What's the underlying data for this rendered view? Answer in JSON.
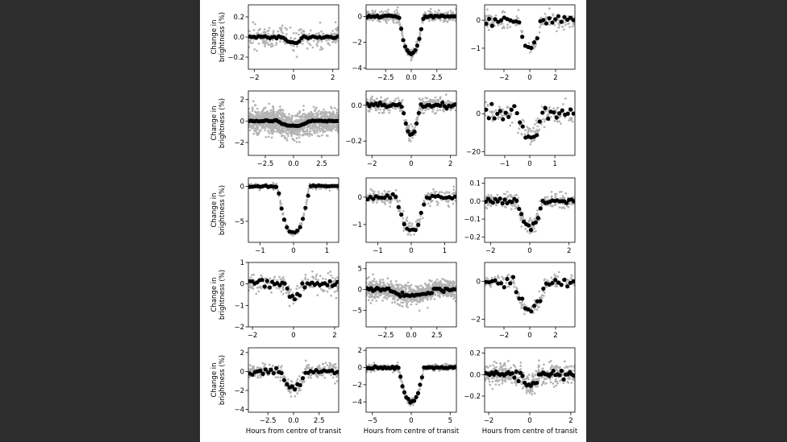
{
  "colors": {
    "background": "#2d2d2d",
    "figure": "#ffffff",
    "raw_points": "#b3b3b3",
    "binned_points": "#000000"
  },
  "chart_data": [
    {
      "type": "scatter",
      "title": "",
      "ylabel": "Change in brightness (%)",
      "xlabel": "",
      "xlim": [
        -2.3,
        2.3
      ],
      "ylim": [
        -0.32,
        0.32
      ],
      "xticks": [
        -2,
        0,
        2
      ],
      "xtick_labels": [
        "−2",
        "0",
        "2"
      ],
      "yticks": [
        -0.2,
        0,
        0.2
      ],
      "ytick_labels": [
        "−0.2",
        "0.0",
        "0.2"
      ],
      "depth": 0.06,
      "duration": 1.0,
      "raw_noise": 0.1,
      "raw_count": 220,
      "binned_count": 40,
      "binned_noise": 0.008
    },
    {
      "type": "scatter",
      "title": "",
      "ylabel": "",
      "xlabel": "",
      "xlim": [
        -4.4,
        4.4
      ],
      "ylim": [
        -4.1,
        0.9
      ],
      "xticks": [
        -2.5,
        0,
        2.5
      ],
      "xtick_labels": [
        "−2.5",
        "0.0",
        "2.5"
      ],
      "yticks": [
        -4,
        -2,
        0
      ],
      "ytick_labels": [
        "−4",
        "−2",
        "0"
      ],
      "depth": 2.9,
      "duration": 2.4,
      "raw_noise": 0.35,
      "raw_count": 420,
      "binned_count": 45,
      "binned_noise": 0.05
    },
    {
      "type": "scatter",
      "title": "",
      "ylabel": "",
      "xlabel": "",
      "xlim": [
        -3.5,
        3.5
      ],
      "ylim": [
        -1.75,
        0.55
      ],
      "xticks": [
        -2,
        0,
        2
      ],
      "xtick_labels": [
        "−2",
        "0",
        "2"
      ],
      "yticks": [
        -1,
        0
      ],
      "ytick_labels": [
        "−1",
        "0"
      ],
      "depth": 1.0,
      "duration": 1.7,
      "raw_noise": 0.28,
      "raw_count": 170,
      "binned_count": 30,
      "binned_noise": 0.08
    },
    {
      "type": "scatter",
      "title": "",
      "ylabel": "Change in brightness (%)",
      "xlabel": "",
      "xlim": [
        -4.0,
        4.0
      ],
      "ylim": [
        -3.2,
        2.8
      ],
      "xticks": [
        -2.5,
        0,
        2.5
      ],
      "xtick_labels": [
        "−2.5",
        "0.0",
        "2.5"
      ],
      "yticks": [
        -2,
        0,
        2
      ],
      "ytick_labels": [
        "−2",
        "0",
        "2"
      ],
      "depth": 0.45,
      "duration": 2.8,
      "raw_noise": 1.0,
      "raw_count": 1300,
      "binned_count": 50,
      "binned_noise": 0.03
    },
    {
      "type": "scatter",
      "title": "",
      "ylabel": "",
      "xlabel": "",
      "xlim": [
        -2.3,
        2.3
      ],
      "ylim": [
        -0.28,
        0.08
      ],
      "xticks": [
        -2,
        0,
        2
      ],
      "xtick_labels": [
        "−2",
        "0",
        "2"
      ],
      "yticks": [
        -0.2,
        0
      ],
      "ytick_labels": [
        "−0.2",
        "0.0"
      ],
      "depth": 0.16,
      "duration": 0.9,
      "raw_noise": 0.035,
      "raw_count": 360,
      "binned_count": 42,
      "binned_noise": 0.006
    },
    {
      "type": "scatter",
      "title": "",
      "ylabel": "",
      "xlabel": "",
      "xlim": [
        -1.8,
        1.8
      ],
      "ylim": [
        -22,
        12
      ],
      "xticks": [
        -1,
        0,
        1
      ],
      "xtick_labels": [
        "−1",
        "0",
        "1"
      ],
      "yticks": [
        -20,
        0
      ],
      "ytick_labels": [
        "−20",
        "0"
      ],
      "depth": 11,
      "duration": 1.1,
      "raw_noise": 5,
      "raw_count": 170,
      "binned_count": 32,
      "binned_noise": 2.0
    },
    {
      "type": "scatter",
      "title": "",
      "ylabel": "Change in brightness (%)",
      "xlabel": "",
      "xlim": [
        -1.35,
        1.35
      ],
      "ylim": [
        -8.0,
        1.2
      ],
      "xticks": [
        -1,
        0,
        1
      ],
      "xtick_labels": [
        "−1",
        "0",
        "1"
      ],
      "yticks": [
        -5,
        0
      ],
      "ytick_labels": [
        "−5",
        "0"
      ],
      "depth": 6.7,
      "duration": 0.95,
      "raw_noise": 0.4,
      "raw_count": 220,
      "binned_count": 34,
      "binned_noise": 0.1
    },
    {
      "type": "scatter",
      "title": "",
      "ylabel": "",
      "xlabel": "",
      "xlim": [
        -1.35,
        1.35
      ],
      "ylim": [
        -1.65,
        0.7
      ],
      "xticks": [
        -1,
        0,
        1
      ],
      "xtick_labels": [
        "−1",
        "0",
        "1"
      ],
      "yticks": [
        -1,
        0
      ],
      "ytick_labels": [
        "−1",
        "0"
      ],
      "depth": 1.2,
      "duration": 0.85,
      "raw_noise": 0.25,
      "raw_count": 220,
      "binned_count": 32,
      "binned_noise": 0.05
    },
    {
      "type": "scatter",
      "title": "",
      "ylabel": "",
      "xlabel": "",
      "xlim": [
        -2.3,
        2.3
      ],
      "ylim": [
        -0.23,
        0.13
      ],
      "xticks": [
        -2,
        0,
        2
      ],
      "xtick_labels": [
        "−2",
        "0",
        "2"
      ],
      "yticks": [
        -0.2,
        -0.1,
        0,
        0.1
      ],
      "ytick_labels": [
        "−0.2",
        "−0.1",
        "0.0",
        "0.1"
      ],
      "depth": 0.14,
      "duration": 1.3,
      "raw_noise": 0.04,
      "raw_count": 260,
      "binned_count": 38,
      "binned_noise": 0.008
    },
    {
      "type": "scatter",
      "title": "",
      "ylabel": "Change in brightness (%)",
      "xlabel": "",
      "xlim": [
        -2.2,
        2.2
      ],
      "ylim": [
        -2.0,
        1.0
      ],
      "xticks": [
        -2,
        0,
        2
      ],
      "xtick_labels": [
        "−2",
        "0",
        "2"
      ],
      "yticks": [
        -2,
        -1,
        0,
        1
      ],
      "ytick_labels": [
        "−2",
        "−1",
        "0",
        "1"
      ],
      "depth": 0.6,
      "duration": 0.9,
      "raw_noise": 0.4,
      "raw_count": 200,
      "binned_count": 36,
      "binned_noise": 0.1
    },
    {
      "type": "scatter",
      "title": "",
      "ylabel": "",
      "xlabel": "",
      "xlim": [
        -4.4,
        4.4
      ],
      "ylim": [
        -9,
        6.5
      ],
      "xticks": [
        -2.5,
        0,
        2.5
      ],
      "xtick_labels": [
        "−2.5",
        "0.0",
        "2.5"
      ],
      "yticks": [
        -5,
        0,
        5
      ],
      "ytick_labels": [
        "−5",
        "0",
        "5"
      ],
      "depth": 1.5,
      "duration": 4.5,
      "raw_noise": 2.0,
      "raw_count": 900,
      "binned_count": 46,
      "binned_noise": 0.2
    },
    {
      "type": "scatter",
      "title": "",
      "ylabel": "",
      "xlabel": "",
      "xlim": [
        -3.5,
        3.5
      ],
      "ylim": [
        -2.4,
        1.0
      ],
      "xticks": [
        -2,
        0,
        2
      ],
      "xtick_labels": [
        "−2",
        "0",
        "2"
      ],
      "yticks": [
        -2,
        0
      ],
      "ytick_labels": [
        "−2",
        "0"
      ],
      "depth": 1.5,
      "duration": 2.5,
      "raw_noise": 0.35,
      "raw_count": 170,
      "binned_count": 30,
      "binned_noise": 0.12
    },
    {
      "type": "scatter",
      "title": "",
      "ylabel": "Change in brightness (%)",
      "xlabel": "Hours from centre of transit",
      "xlim": [
        -4.4,
        4.4
      ],
      "ylim": [
        -4.3,
        2.5
      ],
      "xticks": [
        -2.5,
        0,
        2.5
      ],
      "xtick_labels": [
        "−2.5",
        "0.0",
        "2.5"
      ],
      "yticks": [
        -4,
        -2,
        0,
        2
      ],
      "ytick_labels": [
        "−4",
        "−2",
        "0",
        "2"
      ],
      "depth": 1.8,
      "duration": 2.4,
      "raw_noise": 0.7,
      "raw_count": 280,
      "binned_count": 34,
      "binned_noise": 0.15
    },
    {
      "type": "scatter",
      "title": "",
      "ylabel": "",
      "xlabel": "Hours from centre of transit",
      "xlim": [
        -5.8,
        5.8
      ],
      "ylim": [
        -5.2,
        2.3
      ],
      "xticks": [
        -5,
        0,
        5
      ],
      "xtick_labels": [
        "−5",
        "0",
        "5"
      ],
      "yticks": [
        -4,
        -2,
        0,
        2
      ],
      "ytick_labels": [
        "−4",
        "−2",
        "0",
        "2"
      ],
      "depth": 4.0,
      "duration": 3.2,
      "raw_noise": 0.35,
      "raw_count": 330,
      "binned_count": 46,
      "binned_noise": 0.07
    },
    {
      "type": "scatter",
      "title": "",
      "ylabel": "",
      "xlabel": "Hours from centre of transit",
      "xlim": [
        -2.2,
        2.2
      ],
      "ylim": [
        -0.35,
        0.25
      ],
      "xticks": [
        -2,
        0,
        2
      ],
      "xtick_labels": [
        "−2",
        "0",
        "2"
      ],
      "yticks": [
        -0.2,
        0,
        0.2
      ],
      "ytick_labels": [
        "−0.2",
        "0.0",
        "0.2"
      ],
      "depth": 0.1,
      "duration": 0.9,
      "raw_noise": 0.09,
      "raw_count": 420,
      "binned_count": 44,
      "binned_noise": 0.02
    }
  ]
}
